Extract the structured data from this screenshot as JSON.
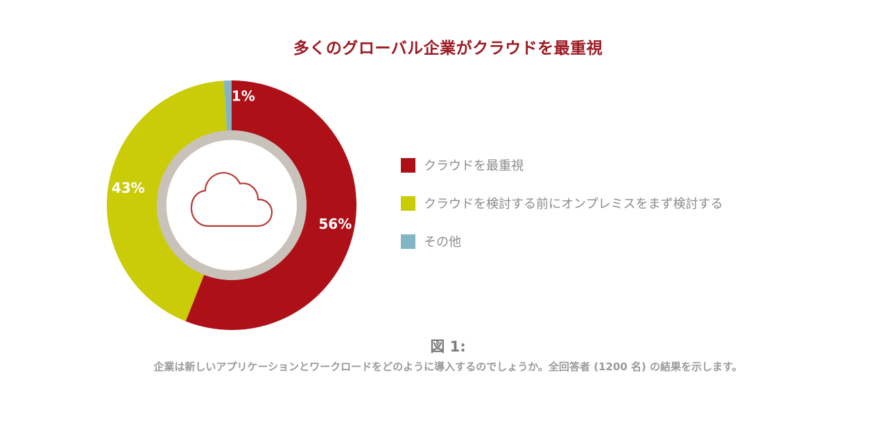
{
  "title": "多くのグローバル企業がクラウドを最重視",
  "chart_data": {
    "type": "pie",
    "style": "donut",
    "series": [
      {
        "name": "クラウドを最重視",
        "value": 56,
        "label": "56%",
        "color": "#ad1017"
      },
      {
        "name": "クラウドを検討する前にオンプレミスをまず検討する",
        "value": 43,
        "label": "43%",
        "color": "#cacc07"
      },
      {
        "name": "その他",
        "value": 1,
        "label": "1%",
        "color": "#84b5c7"
      }
    ],
    "center_icon": "cloud-icon",
    "legend_position": "right"
  },
  "figure": {
    "label": "図 1:",
    "caption": "企業は新しいアプリケーションとワークロードをどのように導入するのでしょうか。全回答者 (1200 名) の結果を示します。"
  }
}
